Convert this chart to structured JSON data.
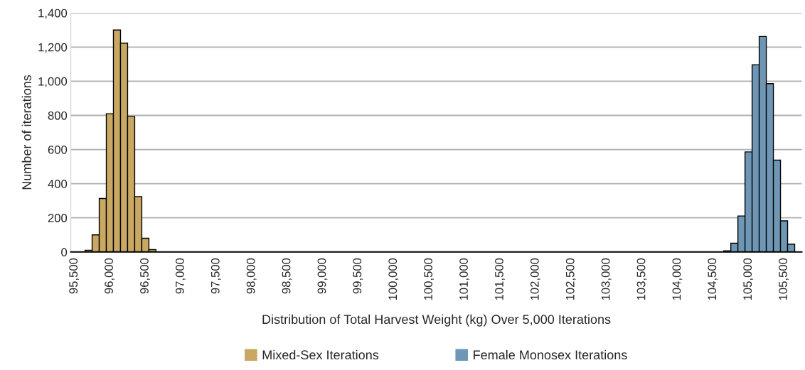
{
  "chart_data": {
    "type": "histogram",
    "xlabel": "Distribution of Total Harvest Weight (kg) Over 5,000 Iterations",
    "ylabel": "Number of iterations",
    "bins": [
      95450,
      95550,
      95650,
      95750,
      95850,
      95950,
      96050,
      96150,
      96250,
      96350,
      96450,
      96550,
      96650,
      96750,
      96850,
      96950,
      97050,
      97150,
      97250,
      97350,
      97450,
      97550,
      97650,
      97750,
      97850,
      97950,
      98050,
      98150,
      98250,
      98350,
      98450,
      98550,
      98650,
      98750,
      98850,
      98950,
      99050,
      99150,
      99250,
      99350,
      99450,
      99550,
      99650,
      99750,
      99850,
      99950,
      100050,
      100150,
      100250,
      100350,
      100450,
      100550,
      100650,
      100750,
      100850,
      100950,
      101050,
      101150,
      101250,
      101350,
      101450,
      101550,
      101650,
      101750,
      101850,
      101950,
      102050,
      102150,
      102250,
      102350,
      102450,
      102550,
      102650,
      102750,
      102850,
      102950,
      103050,
      103150,
      103250,
      103350,
      103450,
      103550,
      103650,
      103750,
      103850,
      103950,
      104050,
      104150,
      104250,
      104350,
      104450,
      104550,
      104650,
      104750,
      104850,
      104950,
      105050,
      105150,
      105250,
      105350,
      105450,
      105550,
      105650,
      105750
    ],
    "series": [
      {
        "name": "Mixed-Sex Iterations",
        "color": "#c8a862",
        "values": [
          0,
          0,
          10,
          100,
          313,
          810,
          1300,
          1223,
          793,
          324,
          80,
          14,
          0,
          0,
          0,
          0,
          0,
          0,
          0,
          0,
          0,
          0,
          0,
          0,
          0,
          0,
          0,
          0,
          0,
          0,
          0,
          0,
          0,
          0,
          0,
          0,
          0,
          0,
          0,
          0,
          0,
          0,
          0,
          0,
          0,
          0,
          0,
          0,
          0,
          0,
          0,
          0,
          0,
          0,
          0,
          0,
          0,
          0,
          0,
          0,
          0,
          0,
          0,
          0,
          0,
          0,
          0,
          0,
          0,
          0,
          0,
          0,
          0,
          0,
          0,
          0,
          0,
          0,
          0,
          0,
          0,
          0,
          0,
          0,
          0,
          0,
          0,
          0,
          0,
          0,
          0,
          0,
          0,
          0,
          0,
          0,
          0,
          0,
          0,
          0,
          0,
          0,
          0
        ]
      },
      {
        "name": "Female Monosex Iterations",
        "color": "#6f97b5",
        "values": [
          0,
          0,
          0,
          0,
          0,
          0,
          0,
          0,
          0,
          0,
          0,
          0,
          0,
          0,
          0,
          0,
          0,
          0,
          0,
          0,
          0,
          0,
          0,
          0,
          0,
          0,
          0,
          0,
          0,
          0,
          0,
          0,
          0,
          0,
          0,
          0,
          0,
          0,
          0,
          0,
          0,
          0,
          0,
          0,
          0,
          0,
          0,
          0,
          0,
          0,
          0,
          0,
          0,
          0,
          0,
          0,
          0,
          0,
          0,
          0,
          0,
          0,
          0,
          0,
          0,
          0,
          0,
          0,
          0,
          0,
          0,
          0,
          0,
          0,
          0,
          0,
          0,
          0,
          0,
          0,
          0,
          0,
          0,
          0,
          0,
          0,
          0,
          0,
          0,
          0,
          0,
          0,
          7,
          51,
          211,
          586,
          1097,
          1262,
          986,
          538,
          182,
          46,
          0
        ]
      }
    ],
    "xlim": [
      95450,
      105750
    ],
    "xticks": [
      {
        "value": 95500,
        "label": "95,500"
      },
      {
        "value": 96000,
        "label": "96,000"
      },
      {
        "value": 96500,
        "label": "96,500"
      },
      {
        "value": 97000,
        "label": "97,000"
      },
      {
        "value": 97500,
        "label": "97,500"
      },
      {
        "value": 98000,
        "label": "98,000"
      },
      {
        "value": 98500,
        "label": "98,500"
      },
      {
        "value": 99000,
        "label": "99,000"
      },
      {
        "value": 99500,
        "label": "99,500"
      },
      {
        "value": 100000,
        "label": "100,000"
      },
      {
        "value": 100500,
        "label": "100,500"
      },
      {
        "value": 101000,
        "label": "101,000"
      },
      {
        "value": 101500,
        "label": "101,500"
      },
      {
        "value": 102000,
        "label": "102,000"
      },
      {
        "value": 102500,
        "label": "102,500"
      },
      {
        "value": 103000,
        "label": "103,000"
      },
      {
        "value": 103500,
        "label": "103,500"
      },
      {
        "value": 104000,
        "label": "104,000"
      },
      {
        "value": 104500,
        "label": "104,500"
      },
      {
        "value": 105000,
        "label": "105,000"
      },
      {
        "value": 105500,
        "label": "105,500"
      }
    ],
    "ylim": [
      0,
      1400
    ],
    "yticks": [
      {
        "value": 0,
        "label": "0"
      },
      {
        "value": 200,
        "label": "200"
      },
      {
        "value": 400,
        "label": "400"
      },
      {
        "value": 600,
        "label": "600"
      },
      {
        "value": 800,
        "label": "800"
      },
      {
        "value": 1000,
        "label": "1,000"
      },
      {
        "value": 1200,
        "label": "1,200"
      },
      {
        "value": 1400,
        "label": "1,400"
      }
    ],
    "grid": "y",
    "legend": "bottom"
  }
}
